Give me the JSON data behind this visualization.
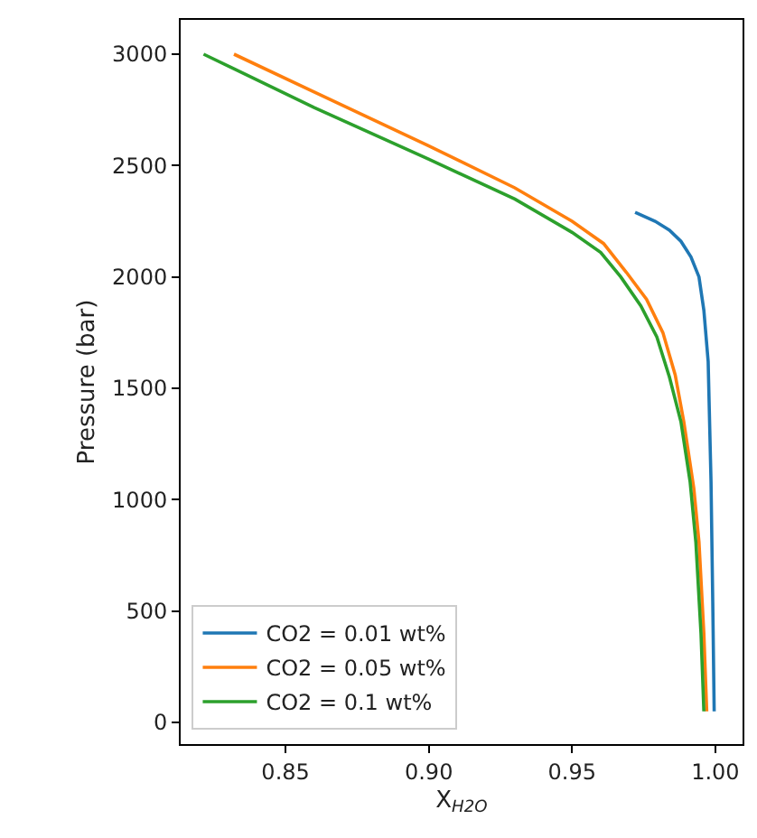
{
  "chart_data": {
    "type": "line",
    "xlabel": "X$_{H2O}$",
    "ylabel": "Pressure (bar)",
    "xlim": [
      0.8134,
      1.0095
    ],
    "xticks": [
      {
        "value": 0.85,
        "label": "0.85"
      },
      {
        "value": 0.9,
        "label": "0.90"
      },
      {
        "value": 0.95,
        "label": "0.95"
      },
      {
        "value": 1.0,
        "label": "1.00"
      }
    ],
    "ylim": [
      -97,
      3154
    ],
    "yticks": [
      0,
      500,
      1000,
      1500,
      2000,
      2500,
      3000
    ],
    "legend": "bottom left",
    "marker": "none",
    "line_style": "solid",
    "series": [
      {
        "name": "CO2 = 0.01 wt%",
        "color": "#1f77b4",
        "x": [
          0.972,
          0.979,
          0.984,
          0.988,
          0.9915,
          0.9943,
          0.996,
          0.9975,
          0.9985,
          0.9991,
          0.9996
        ],
        "values": [
          2290,
          2250,
          2210,
          2160,
          2090,
          2000,
          1850,
          1620,
          1080,
          540,
          50
        ]
      },
      {
        "name": "CO2 = 0.05 wt%",
        "color": "#ff7f0e",
        "x": [
          0.832,
          0.86,
          0.8997,
          0.93,
          0.95,
          0.961,
          0.969,
          0.976,
          0.9817,
          0.986,
          0.989,
          0.9925,
          0.9943,
          0.996,
          0.997
        ],
        "values": [
          3000,
          2830,
          2590,
          2400,
          2250,
          2150,
          2020,
          1900,
          1750,
          1560,
          1350,
          1050,
          810,
          400,
          50
        ]
      },
      {
        "name": "CO2 = 0.1 wt%",
        "color": "#2ca02c",
        "x": [
          0.8214,
          0.86,
          0.8997,
          0.93,
          0.95,
          0.96,
          0.967,
          0.974,
          0.9796,
          0.984,
          0.988,
          0.9912,
          0.9932,
          0.995,
          0.996
        ],
        "values": [
          3000,
          2760,
          2530,
          2350,
          2200,
          2110,
          2000,
          1870,
          1730,
          1550,
          1350,
          1080,
          810,
          400,
          50
        ]
      }
    ]
  }
}
